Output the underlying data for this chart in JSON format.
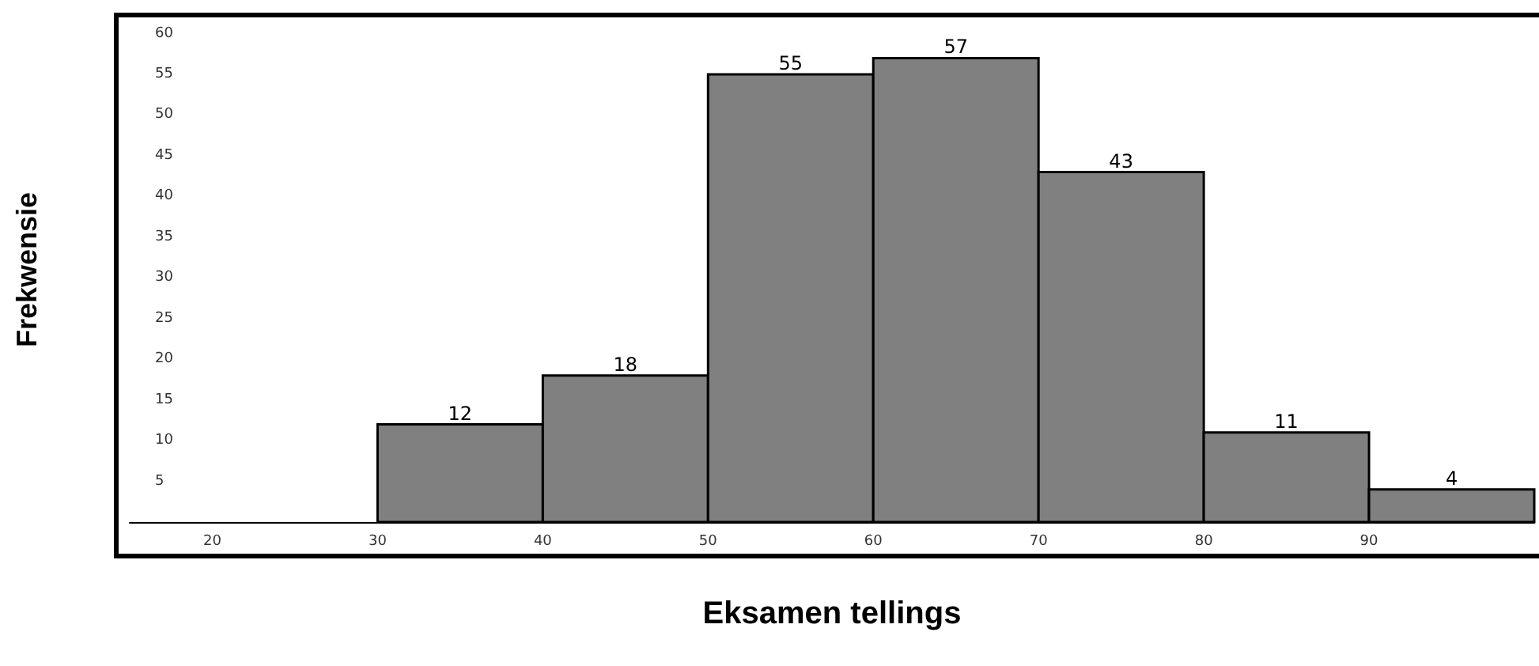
{
  "chart_data": {
    "type": "histogram",
    "xlabel": "Eksamen tellings",
    "ylabel": "Frekwensie",
    "bins": [
      30,
      40,
      50,
      60,
      70,
      80,
      90,
      100
    ],
    "values": [
      12,
      18,
      55,
      57,
      43,
      11,
      4
    ],
    "color": "#808080",
    "data_labels": true,
    "xlim": [
      15,
      100
    ],
    "xticks": [
      20,
      30,
      40,
      50,
      60,
      70,
      80,
      90
    ],
    "ylim": [
      0,
      62
    ],
    "yticks": [
      5,
      10,
      15,
      20,
      25,
      30,
      35,
      40,
      45,
      50,
      55,
      60
    ]
  }
}
